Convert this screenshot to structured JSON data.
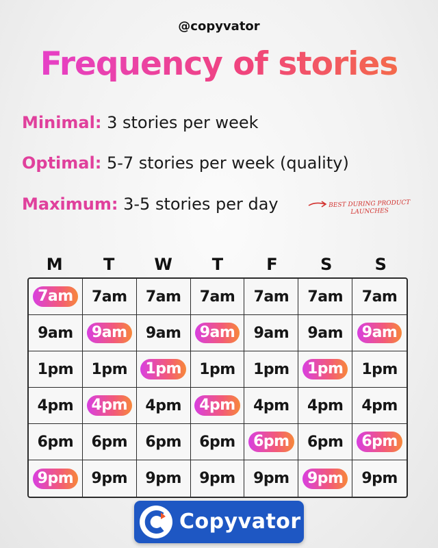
{
  "handle": "@copyvator",
  "title": "Frequency of stories",
  "rules": [
    {
      "label": "Minimal:",
      "text": "3 stories per week"
    },
    {
      "label": "Optimal:",
      "text": "5-7 stories per week (quality)"
    },
    {
      "label": "Maximum:",
      "text": "3-5 stories per day"
    }
  ],
  "note": "BEST DURING PRODUCT LAUNCHES",
  "days": [
    "M",
    "T",
    "W",
    "T",
    "F",
    "S",
    "S"
  ],
  "schedule": [
    {
      "time": "7am",
      "highlight": [
        true,
        false,
        false,
        false,
        false,
        false,
        false
      ]
    },
    {
      "time": "9am",
      "highlight": [
        false,
        true,
        false,
        true,
        false,
        false,
        true
      ]
    },
    {
      "time": "1pm",
      "highlight": [
        false,
        false,
        true,
        false,
        false,
        true,
        false
      ]
    },
    {
      "time": "4pm",
      "highlight": [
        false,
        true,
        false,
        true,
        false,
        false,
        false
      ]
    },
    {
      "time": "6pm",
      "highlight": [
        false,
        false,
        false,
        false,
        true,
        false,
        true
      ]
    },
    {
      "time": "9pm",
      "highlight": [
        true,
        false,
        false,
        false,
        false,
        true,
        false
      ]
    }
  ],
  "brand": {
    "name": "Copyvator",
    "icon": "copyvator-logo-icon"
  },
  "colors": {
    "highlight_start": "#d83fe0",
    "highlight_end": "#f7883a",
    "label": "#e0409c",
    "brand_bg": "#1e57c3",
    "note": "#d2322f"
  }
}
